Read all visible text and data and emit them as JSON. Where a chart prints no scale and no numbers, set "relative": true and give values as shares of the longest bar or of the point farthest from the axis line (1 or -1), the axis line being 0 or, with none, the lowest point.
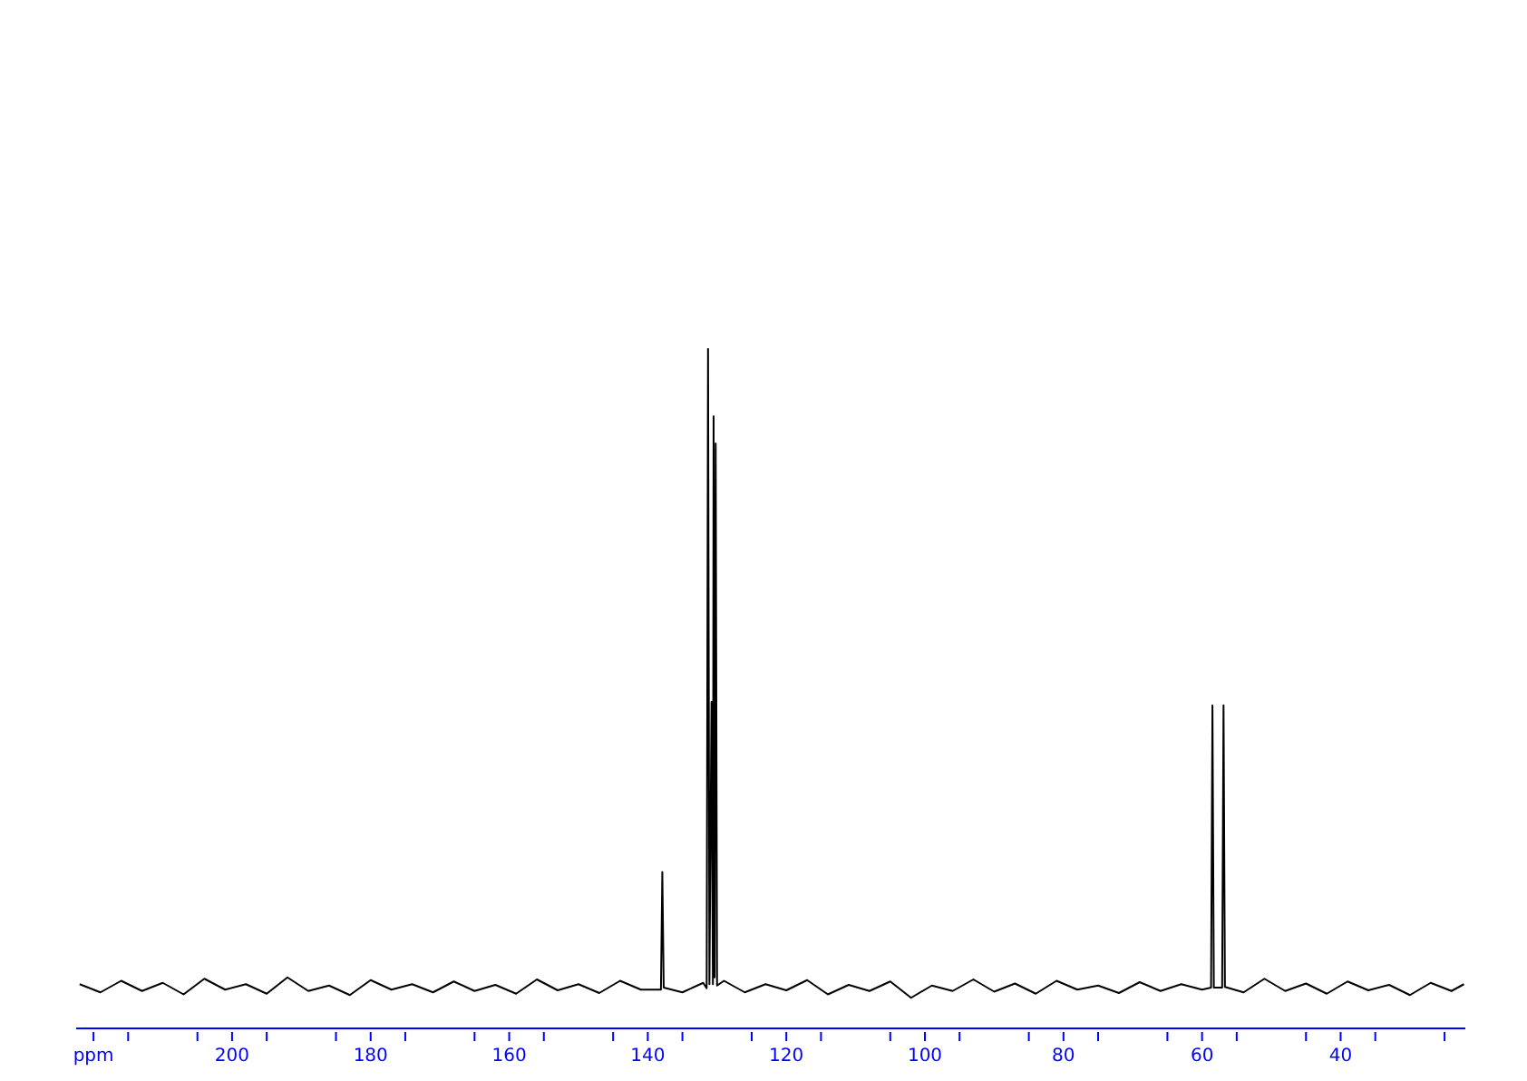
{
  "chart_data": {
    "type": "line",
    "relative": true,
    "grid": false,
    "legend": false,
    "marker": "none",
    "line_style": "solid",
    "xlim": [
      222.5,
      22
    ],
    "xticks": [
      {
        "value": 220,
        "label": "ppm"
      },
      {
        "value": 215,
        "label": null
      },
      200,
      {
        "value": 205,
        "label": null
      },
      {
        "value": 195,
        "label": null
      },
      180,
      {
        "value": 185,
        "label": null
      },
      {
        "value": 175,
        "label": null
      },
      160,
      {
        "value": 165,
        "label": null
      },
      {
        "value": 155,
        "label": null
      },
      140,
      {
        "value": 145,
        "label": null
      },
      {
        "value": 135,
        "label": null
      },
      120,
      {
        "value": 125,
        "label": null
      },
      {
        "value": 115,
        "label": null
      },
      100,
      {
        "value": 105,
        "label": null
      },
      {
        "value": 95,
        "label": null
      },
      80,
      {
        "value": 85,
        "label": null
      },
      {
        "value": 75,
        "label": null
      },
      60,
      {
        "value": 65,
        "label": null
      },
      {
        "value": 55,
        "label": null
      },
      40,
      {
        "value": 45,
        "label": null
      },
      {
        "value": 35,
        "label": null
      },
      {
        "value": 25,
        "label": null
      }
    ],
    "series": [
      {
        "color": "#000000",
        "x": [
          222,
          219,
          216,
          213,
          210,
          207,
          204,
          201,
          198,
          195,
          192,
          189,
          186,
          183,
          180,
          177,
          174,
          171,
          168,
          165,
          162,
          159,
          156,
          153,
          150,
          147,
          144,
          141,
          138.1,
          137.9,
          137.7,
          135,
          132,
          131.5,
          131.3,
          131.1,
          130.8,
          130.6,
          130.5,
          130.35,
          130.2,
          130.0,
          129,
          126,
          123,
          120,
          117,
          114,
          111,
          108,
          105,
          102,
          99,
          96,
          93,
          90,
          87,
          84,
          81,
          78,
          75,
          72,
          69,
          66,
          63,
          60,
          58.7,
          58.5,
          58.3,
          57.1,
          56.9,
          56.7,
          54,
          51,
          48,
          45,
          42,
          39,
          36,
          33,
          30,
          27,
          24,
          22.2
        ],
        "values": [
          0.065,
          0.053,
          0.07,
          0.055,
          0.067,
          0.05,
          0.073,
          0.057,
          0.065,
          0.051,
          0.075,
          0.055,
          0.063,
          0.049,
          0.071,
          0.057,
          0.065,
          0.053,
          0.069,
          0.055,
          0.064,
          0.051,
          0.072,
          0.056,
          0.065,
          0.052,
          0.07,
          0.057,
          0.057,
          0.23,
          0.06,
          0.053,
          0.067,
          0.059,
          1.0,
          0.065,
          0.48,
          0.065,
          0.9,
          0.075,
          0.86,
          0.063,
          0.07,
          0.053,
          0.065,
          0.056,
          0.071,
          0.05,
          0.064,
          0.055,
          0.069,
          0.045,
          0.063,
          0.055,
          0.072,
          0.054,
          0.066,
          0.051,
          0.07,
          0.057,
          0.063,
          0.052,
          0.068,
          0.055,
          0.065,
          0.057,
          0.06,
          0.475,
          0.06,
          0.06,
          0.475,
          0.061,
          0.053,
          0.073,
          0.055,
          0.066,
          0.051,
          0.069,
          0.056,
          0.064,
          0.049,
          0.067,
          0.055,
          0.065
        ]
      }
    ]
  }
}
